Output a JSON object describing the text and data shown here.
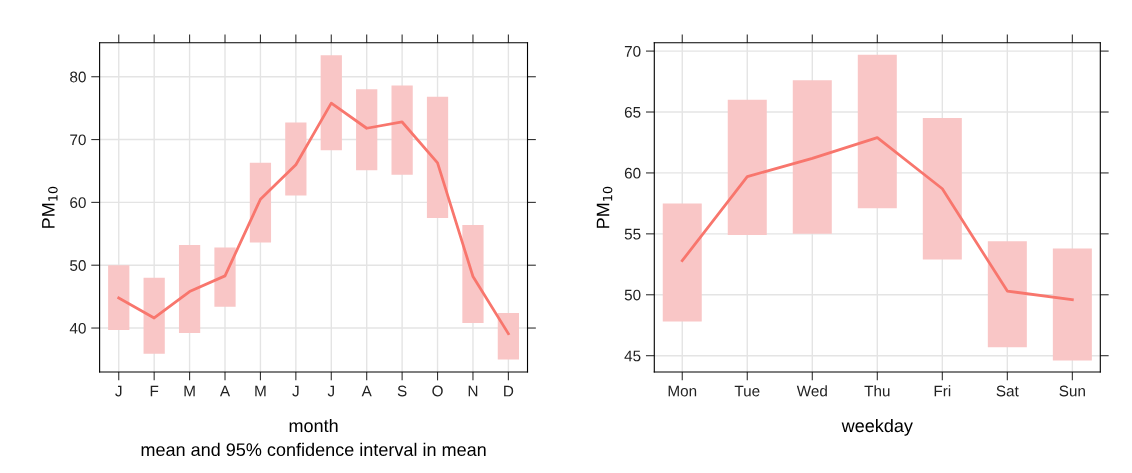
{
  "chart_data": [
    {
      "type": "line",
      "xlabel": "month",
      "ylabel": "PM$_{10}$",
      "categories": [
        "J",
        "F",
        "M",
        "A",
        "M",
        "J",
        "J",
        "A",
        "S",
        "O",
        "N",
        "D"
      ],
      "series": [
        {
          "type": "bar",
          "color": "#f9c6c6",
          "base": [
            39.7,
            35.9,
            39.2,
            43.4,
            53.6,
            61.1,
            68.3,
            65.1,
            64.4,
            57.5,
            40.8,
            35.0
          ],
          "values": [
            10.3,
            12.1,
            14.0,
            9.4,
            12.7,
            11.6,
            15.1,
            12.9,
            14.2,
            19.3,
            15.6,
            7.4
          ]
        },
        {
          "color": "#f8766d",
          "values": [
            44.8,
            41.6,
            45.8,
            48.3,
            60.5,
            66.0,
            75.8,
            71.8,
            72.8,
            66.3,
            48.2,
            39.1
          ]
        }
      ],
      "ylim": [
        33.0,
        85.4
      ],
      "yticks": [
        40,
        50,
        60,
        70,
        80
      ],
      "grid": true,
      "annotations": [
        "mean and 95% confidence interval in mean"
      ]
    },
    {
      "type": "line",
      "xlabel": "weekday",
      "ylabel": "PM$_{10}$",
      "categories": [
        "Mon",
        "Tue",
        "Wed",
        "Thu",
        "Fri",
        "Sat",
        "Sun"
      ],
      "series": [
        {
          "type": "bar",
          "color": "#f9c6c6",
          "base": [
            47.8,
            54.9,
            55.0,
            57.1,
            52.9,
            45.7,
            44.6
          ],
          "values": [
            9.7,
            11.1,
            12.6,
            12.6,
            11.6,
            8.7,
            9.2
          ]
        },
        {
          "color": "#f8766d",
          "values": [
            52.8,
            59.7,
            61.2,
            62.9,
            58.7,
            50.3,
            49.6
          ]
        }
      ],
      "ylim": [
        43.66,
        70.68
      ],
      "yticks": [
        45,
        50,
        55,
        60,
        65,
        70
      ],
      "grid": true
    }
  ]
}
